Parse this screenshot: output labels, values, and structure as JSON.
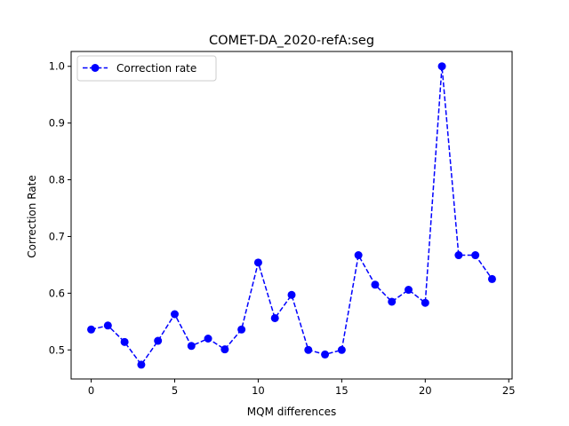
{
  "chart_data": {
    "type": "line",
    "title": "COMET-DA_2020-refA:seg",
    "xlabel": "MQM differences",
    "ylabel": "Correction Rate",
    "xlim": [
      -1.2,
      25.2
    ],
    "ylim": [
      0.4488,
      1.0262
    ],
    "xticks": [
      0,
      5,
      10,
      15,
      20,
      25
    ],
    "yticks": [
      0.5,
      0.6,
      0.7,
      0.8,
      0.9,
      1.0
    ],
    "xtick_labels": [
      "0",
      "5",
      "10",
      "15",
      "20",
      "25"
    ],
    "ytick_labels": [
      "0.5",
      "0.6",
      "0.7",
      "0.8",
      "0.9",
      "1.0"
    ],
    "legend_position": "top-left",
    "grid": false,
    "series": [
      {
        "name": "Correction rate",
        "color": "#0000ff",
        "line_style": "dashed",
        "marker": "circle",
        "x": [
          0,
          1,
          2,
          3,
          4,
          5,
          6,
          7,
          8,
          9,
          10,
          11,
          12,
          13,
          14,
          15,
          16,
          17,
          18,
          19,
          20,
          21,
          22,
          23,
          24
        ],
        "y": [
          0.536,
          0.543,
          0.514,
          0.474,
          0.516,
          0.563,
          0.507,
          0.52,
          0.501,
          0.536,
          0.654,
          0.556,
          0.597,
          0.5,
          0.492,
          0.5,
          0.667,
          0.615,
          0.585,
          0.606,
          0.583,
          1.0,
          0.667,
          0.667,
          0.625
        ]
      }
    ]
  }
}
